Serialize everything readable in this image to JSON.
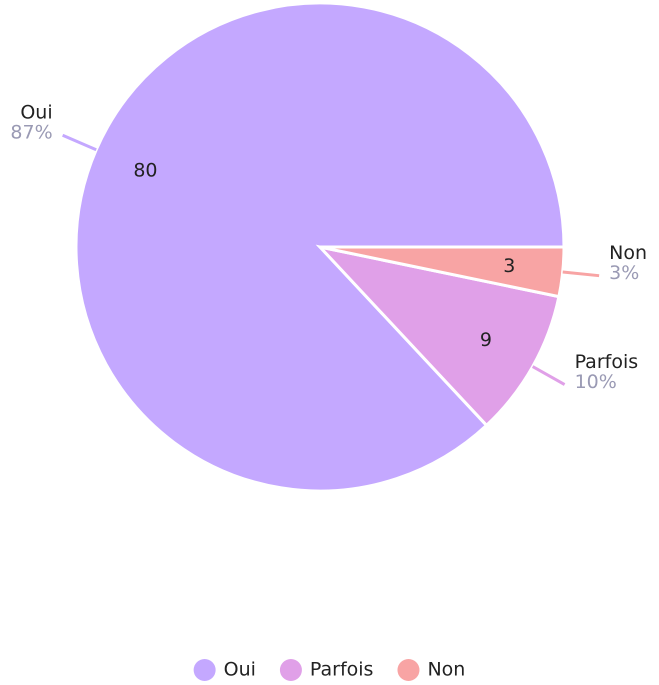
{
  "chart_data": {
    "type": "pie",
    "categories": [
      "Oui",
      "Parfois",
      "Non"
    ],
    "values": [
      80,
      9,
      3
    ],
    "percent_labels": [
      "87%",
      "10%",
      "3%"
    ],
    "colors": [
      "#c4a8ff",
      "#e0a0e8",
      "#f8a4a4"
    ],
    "legend": "bottom"
  }
}
